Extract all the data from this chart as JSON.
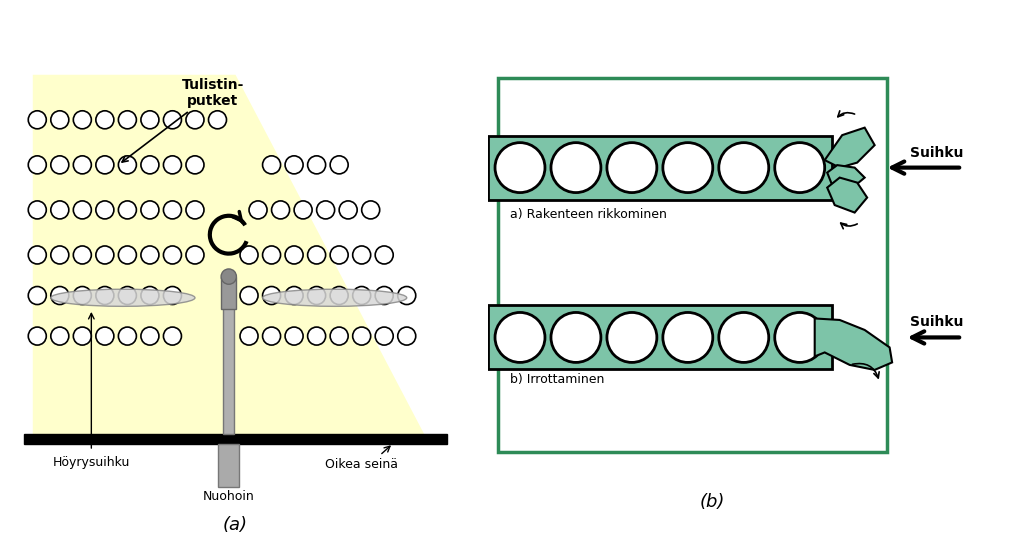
{
  "fig_width": 10.24,
  "fig_height": 5.55,
  "dpi": 100,
  "bg_color": "#ffffff",
  "yellow_color": "#ffffcc",
  "green_color": "#7dc4a8",
  "green_border": "#2e8b57",
  "label_a": "(a)",
  "label_b": "(b)",
  "text_tulistin": "Tulistin-\nputket",
  "text_hoyry": "Höyrysuihku",
  "text_nuohoin": "Nuohoin",
  "text_oikea": "Oikea seinä",
  "text_suihku": "Suihku",
  "text_a_sub": "a) Rakenteen rikkominen",
  "text_b_sub": "b) Irrottaminen"
}
